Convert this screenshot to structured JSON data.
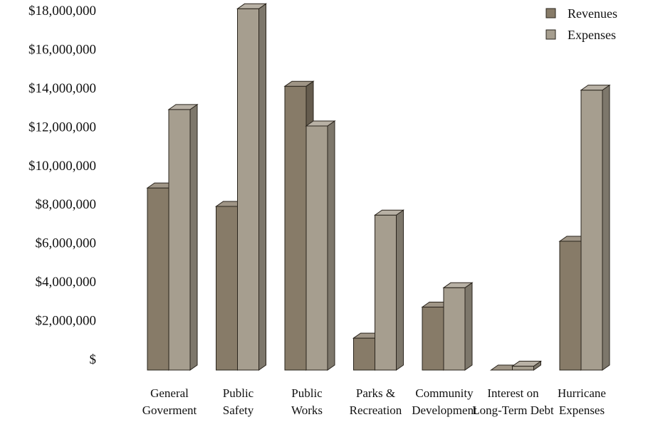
{
  "chart_data": {
    "type": "bar",
    "title": "",
    "xlabel": "",
    "ylabel": "",
    "ylim": [
      0,
      18000000
    ],
    "y_ticks": [
      {
        "value": 0,
        "label": "$"
      },
      {
        "value": 2000000,
        "label": "$2,000,000"
      },
      {
        "value": 4000000,
        "label": "$4,000,000"
      },
      {
        "value": 6000000,
        "label": "$6,000,000"
      },
      {
        "value": 8000000,
        "label": "$8,000,000"
      },
      {
        "value": 10000000,
        "label": "$10,000,000"
      },
      {
        "value": 12000000,
        "label": "$12,000,000"
      },
      {
        "value": 14000000,
        "label": "$14,000,000"
      },
      {
        "value": 16000000,
        "label": "$16,000,000"
      },
      {
        "value": 18000000,
        "label": "$18,000,000"
      }
    ],
    "categories": [
      [
        "General",
        "Goverment"
      ],
      [
        "Public",
        "Safety"
      ],
      [
        "Public",
        "Works"
      ],
      [
        "Parks &",
        "Recreation"
      ],
      [
        "Community",
        "Development"
      ],
      [
        "Interest on",
        "Long-Term Debt"
      ],
      [
        "Hurricane",
        "Expenses"
      ]
    ],
    "series": [
      {
        "name": "Revenues",
        "color": "#877b68",
        "values": [
          9400000,
          8450000,
          14650000,
          1650000,
          3250000,
          0,
          6650000
        ]
      },
      {
        "name": "Expenses",
        "color": "#a69e8f",
        "values": [
          13450000,
          18650000,
          12600000,
          8000000,
          4250000,
          200000,
          14450000
        ]
      }
    ],
    "legend_position": "top-right",
    "grid": false,
    "style": "3d-bar"
  }
}
